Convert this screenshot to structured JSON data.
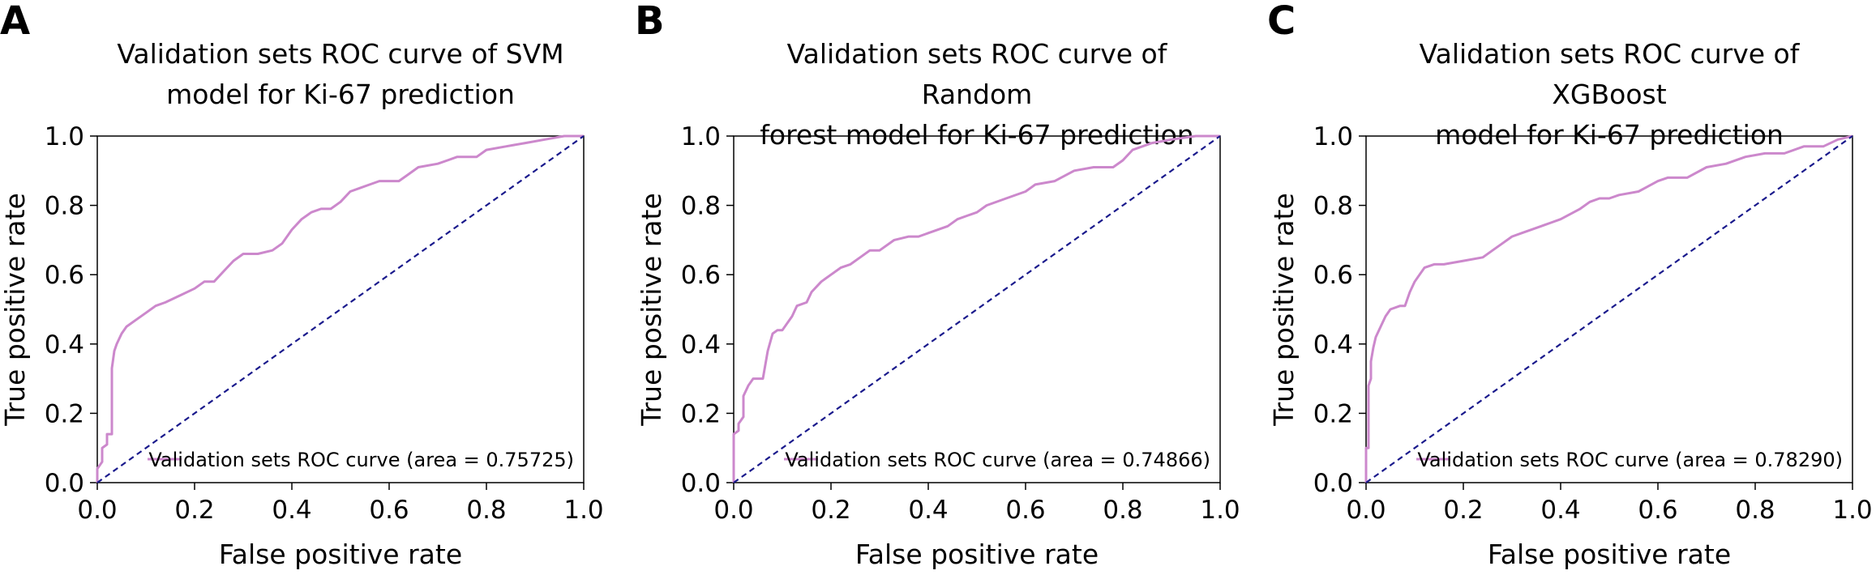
{
  "chart_data": [
    {
      "panel_label": "A",
      "type": "line",
      "title": "Validation sets ROC curve of SVM model for Ki-67 prediction",
      "title_lines": [
        "Validation sets ROC curve of SVM",
        "model for Ki-67 prediction"
      ],
      "xlabel": "False positive rate",
      "ylabel": "True positive rate",
      "xlim": [
        0.0,
        1.0
      ],
      "ylim": [
        0.0,
        1.0
      ],
      "xticks": [
        "0.0",
        "0.2",
        "0.4",
        "0.6",
        "0.8",
        "1.0"
      ],
      "yticks": [
        "0.0",
        "0.2",
        "0.4",
        "0.6",
        "0.8",
        "1.0"
      ],
      "legend_position": "bottom-right",
      "legend_label": "Validation sets ROC curve (area = 0.75725)",
      "series": [
        {
          "name": "Validation sets ROC curve (area = 0.75725)",
          "color": "#cc88cc",
          "style": "solid",
          "x": [
            0.0,
            0.0,
            0.01,
            0.01,
            0.02,
            0.02,
            0.03,
            0.03,
            0.035,
            0.04,
            0.05,
            0.06,
            0.08,
            0.1,
            0.12,
            0.14,
            0.17,
            0.2,
            0.22,
            0.24,
            0.26,
            0.28,
            0.3,
            0.33,
            0.36,
            0.38,
            0.4,
            0.42,
            0.44,
            0.46,
            0.48,
            0.5,
            0.52,
            0.54,
            0.56,
            0.58,
            0.62,
            0.64,
            0.66,
            0.7,
            0.72,
            0.74,
            0.78,
            0.8,
            0.84,
            0.88,
            0.92,
            0.96,
            1.0
          ],
          "y": [
            0.0,
            0.04,
            0.06,
            0.1,
            0.11,
            0.14,
            0.14,
            0.33,
            0.38,
            0.4,
            0.43,
            0.45,
            0.47,
            0.49,
            0.51,
            0.52,
            0.54,
            0.56,
            0.58,
            0.58,
            0.61,
            0.64,
            0.66,
            0.66,
            0.67,
            0.69,
            0.73,
            0.76,
            0.78,
            0.79,
            0.79,
            0.81,
            0.84,
            0.85,
            0.86,
            0.87,
            0.87,
            0.89,
            0.91,
            0.92,
            0.93,
            0.94,
            0.94,
            0.96,
            0.97,
            0.98,
            0.99,
            1.0,
            1.0
          ]
        },
        {
          "name": "",
          "color": "#1a1a8c",
          "style": "dashed",
          "x": [
            0.0,
            1.0
          ],
          "y": [
            0.0,
            1.0
          ]
        }
      ]
    },
    {
      "panel_label": "B",
      "type": "line",
      "title": "Validation sets ROC curve of Random forest model for Ki-67 prediction",
      "title_lines": [
        "Validation sets ROC curve of Random",
        "forest model for Ki-67 prediction"
      ],
      "xlabel": "False positive rate",
      "ylabel": "True positive rate",
      "xlim": [
        0.0,
        1.0
      ],
      "ylim": [
        0.0,
        1.0
      ],
      "xticks": [
        "0.0",
        "0.2",
        "0.4",
        "0.6",
        "0.8",
        "1.0"
      ],
      "yticks": [
        "0.0",
        "0.2",
        "0.4",
        "0.6",
        "0.8",
        "1.0"
      ],
      "legend_position": "bottom-right",
      "legend_label": "Validation sets ROC curve (area = 0.74866)",
      "series": [
        {
          "name": "Validation sets ROC curve (area = 0.74866)",
          "color": "#cc88cc",
          "style": "solid",
          "x": [
            0.0,
            0.0,
            0.01,
            0.01,
            0.02,
            0.02,
            0.03,
            0.04,
            0.06,
            0.07,
            0.08,
            0.09,
            0.1,
            0.12,
            0.13,
            0.15,
            0.16,
            0.18,
            0.2,
            0.22,
            0.24,
            0.26,
            0.28,
            0.3,
            0.33,
            0.36,
            0.38,
            0.4,
            0.44,
            0.46,
            0.48,
            0.5,
            0.52,
            0.56,
            0.6,
            0.62,
            0.66,
            0.7,
            0.74,
            0.78,
            0.8,
            0.82,
            0.86,
            0.9,
            0.95,
            1.0
          ],
          "y": [
            0.0,
            0.14,
            0.15,
            0.17,
            0.19,
            0.25,
            0.28,
            0.3,
            0.3,
            0.38,
            0.43,
            0.44,
            0.44,
            0.48,
            0.51,
            0.52,
            0.55,
            0.58,
            0.6,
            0.62,
            0.63,
            0.65,
            0.67,
            0.67,
            0.7,
            0.71,
            0.71,
            0.72,
            0.74,
            0.76,
            0.77,
            0.78,
            0.8,
            0.82,
            0.84,
            0.86,
            0.87,
            0.9,
            0.91,
            0.91,
            0.93,
            0.96,
            0.98,
            0.99,
            1.0,
            1.0
          ]
        },
        {
          "name": "",
          "color": "#1a1a8c",
          "style": "dashed",
          "x": [
            0.0,
            1.0
          ],
          "y": [
            0.0,
            1.0
          ]
        }
      ]
    },
    {
      "panel_label": "C",
      "type": "line",
      "title": "Validation sets ROC curve of XGBoost model for Ki-67 prediction",
      "title_lines": [
        "Validation sets ROC curve of XGBoost",
        "model for Ki-67 prediction"
      ],
      "xlabel": "False positive rate",
      "ylabel": "True positive rate",
      "xlim": [
        0.0,
        1.0
      ],
      "ylim": [
        0.0,
        1.0
      ],
      "xticks": [
        "0.0",
        "0.2",
        "0.4",
        "0.6",
        "0.8",
        "1.0"
      ],
      "yticks": [
        "0.0",
        "0.2",
        "0.4",
        "0.6",
        "0.8",
        "1.0"
      ],
      "legend_position": "bottom-right",
      "legend_label": "Validation sets ROC curve (area = 0.78290)",
      "series": [
        {
          "name": "Validation sets ROC curve (area = 0.78290)",
          "color": "#cc88cc",
          "style": "solid",
          "x": [
            0.0,
            0.0,
            0.005,
            0.005,
            0.01,
            0.01,
            0.015,
            0.02,
            0.03,
            0.04,
            0.05,
            0.07,
            0.08,
            0.09,
            0.1,
            0.11,
            0.12,
            0.14,
            0.16,
            0.2,
            0.24,
            0.26,
            0.28,
            0.3,
            0.32,
            0.36,
            0.38,
            0.4,
            0.44,
            0.46,
            0.48,
            0.5,
            0.52,
            0.56,
            0.6,
            0.62,
            0.66,
            0.7,
            0.74,
            0.78,
            0.82,
            0.86,
            0.9,
            0.94,
            0.97,
            1.0
          ],
          "y": [
            0.0,
            0.1,
            0.1,
            0.28,
            0.3,
            0.35,
            0.39,
            0.42,
            0.45,
            0.48,
            0.5,
            0.51,
            0.51,
            0.55,
            0.58,
            0.6,
            0.62,
            0.63,
            0.63,
            0.64,
            0.65,
            0.67,
            0.69,
            0.71,
            0.72,
            0.74,
            0.75,
            0.76,
            0.79,
            0.81,
            0.82,
            0.82,
            0.83,
            0.84,
            0.87,
            0.88,
            0.88,
            0.91,
            0.92,
            0.94,
            0.95,
            0.95,
            0.97,
            0.97,
            0.99,
            1.0
          ]
        },
        {
          "name": "",
          "color": "#1a1a8c",
          "style": "dashed",
          "x": [
            0.0,
            1.0
          ],
          "y": [
            0.0,
            1.0
          ]
        }
      ]
    }
  ]
}
